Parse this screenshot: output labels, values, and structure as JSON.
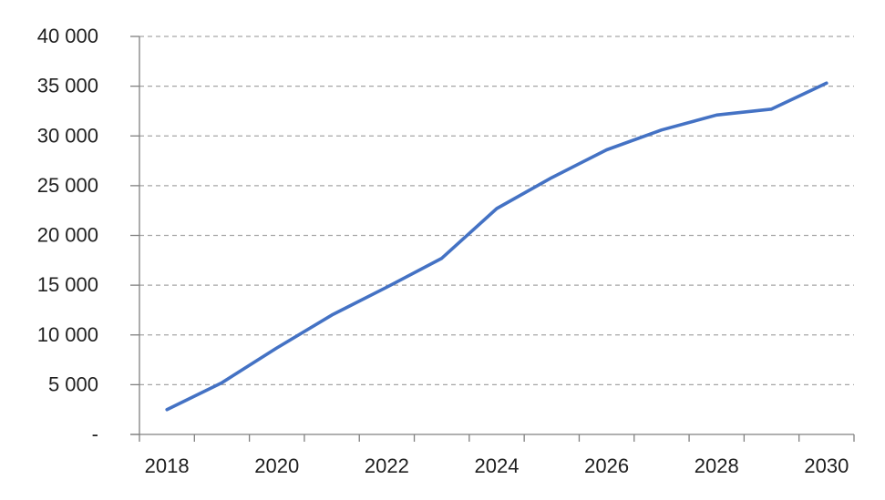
{
  "chart_data": {
    "type": "line",
    "x": [
      2018,
      2019,
      2020,
      2021,
      2022,
      2023,
      2024,
      2025,
      2026,
      2027,
      2028,
      2029,
      2030
    ],
    "series": [
      {
        "name": "forecast-line",
        "values": [
          2500,
          5200,
          8700,
          12000,
          14800,
          17700,
          22700,
          25800,
          28600,
          30600,
          32100,
          32700,
          35300
        ]
      }
    ],
    "ylim": [
      0,
      40000
    ],
    "ytick_step": 5000,
    "ytick_values": [
      0,
      5000,
      10000,
      15000,
      20000,
      25000,
      30000,
      35000,
      40000
    ],
    "ytick_labels": [
      "-",
      "5 000",
      "10 000",
      "15 000",
      "20 000",
      "25 000",
      "30 000",
      "35 000",
      "40 000"
    ],
    "xtick_label_years": [
      2018,
      2020,
      2022,
      2024,
      2026,
      2028,
      2030
    ],
    "xtick_labels": [
      "2018",
      "2020",
      "2022",
      "2024",
      "2026",
      "2028",
      "2030"
    ],
    "grid": "horizontal-dashed",
    "legend": "none",
    "colors": {
      "line": "#4472C4",
      "gridline": "#A6A6A6",
      "axis": "#808080",
      "tick": "#808080",
      "label": "#1f1f1f",
      "background": "#FFFFFF"
    }
  }
}
